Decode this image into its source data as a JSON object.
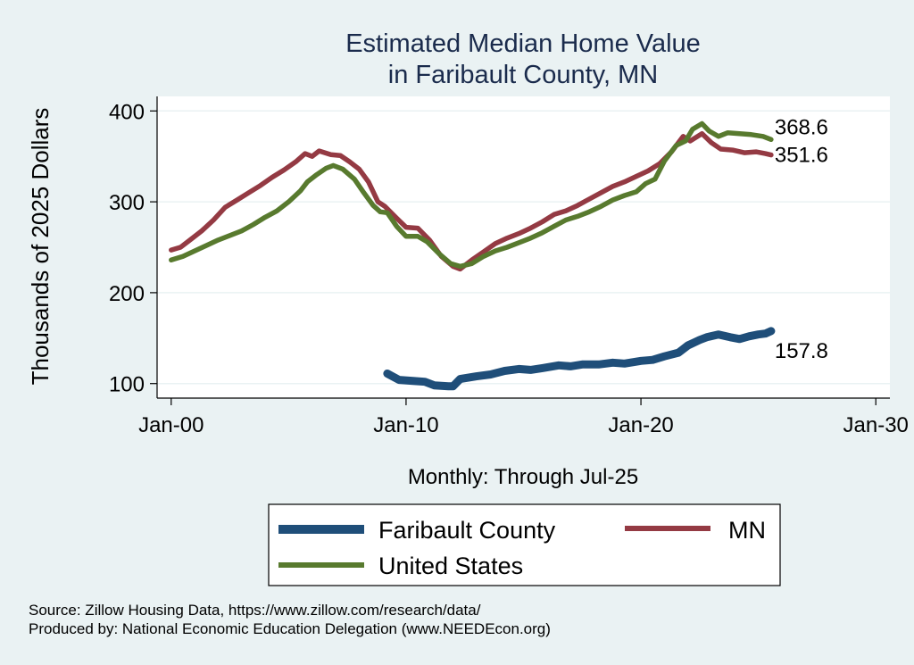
{
  "chart_data": {
    "type": "line",
    "title": [
      "Estimated Median Home Value",
      "in Faribault County, MN"
    ],
    "xlabel": "Monthly: Through Jul-25",
    "ylabel": "Thousands of 2025 Dollars",
    "xlim": [
      1999.4,
      2030.6
    ],
    "ylim": [
      84,
      416
    ],
    "x_ticks": [
      {
        "value": 2000,
        "label": "Jan-00"
      },
      {
        "value": 2010,
        "label": "Jan-10"
      },
      {
        "value": 2020,
        "label": "Jan-20"
      },
      {
        "value": 2030,
        "label": "Jan-30"
      }
    ],
    "y_ticks": [
      {
        "value": 100,
        "label": "100"
      },
      {
        "value": 200,
        "label": "200"
      },
      {
        "value": 300,
        "label": "300"
      },
      {
        "value": 400,
        "label": "400"
      }
    ],
    "grid": true,
    "legend_position": "bottom",
    "series": [
      {
        "name": "Faribault County",
        "color": "#1f4e79",
        "end_label": "157.8",
        "x": [
          2009.2,
          2009.7,
          2010.3,
          2010.8,
          2011.2,
          2011.8,
          2012.0,
          2012.3,
          2013.0,
          2013.6,
          2014.2,
          2014.8,
          2015.3,
          2015.8,
          2016.5,
          2017.0,
          2017.5,
          2018.2,
          2018.8,
          2019.3,
          2020.0,
          2020.5,
          2021.0,
          2021.6,
          2022.0,
          2022.5,
          2022.8,
          2023.3,
          2023.8,
          2024.2,
          2024.6,
          2025.0,
          2025.3,
          2025.54
        ],
        "y": [
          111,
          104,
          103,
          102,
          98,
          97,
          97,
          105,
          108,
          110,
          114,
          116,
          115,
          117,
          120,
          119,
          121,
          121,
          123,
          122,
          125,
          126,
          130,
          134,
          142,
          148,
          151,
          154,
          151,
          149,
          152,
          154,
          155,
          157.8
        ]
      },
      {
        "name": "MN",
        "color": "#943a43",
        "end_label": "351.6",
        "x": [
          2000.0,
          2000.4,
          2000.8,
          2001.3,
          2001.8,
          2002.3,
          2002.8,
          2003.3,
          2003.8,
          2004.3,
          2004.8,
          2005.3,
          2005.7,
          2006.0,
          2006.3,
          2006.8,
          2007.2,
          2007.6,
          2008.0,
          2008.4,
          2008.8,
          2009.1,
          2009.6,
          2010.0,
          2010.5,
          2011.0,
          2011.5,
          2012.0,
          2012.3,
          2012.8,
          2013.3,
          2013.8,
          2014.3,
          2014.8,
          2015.3,
          2015.8,
          2016.3,
          2016.8,
          2017.3,
          2017.8,
          2018.3,
          2018.8,
          2019.3,
          2019.8,
          2020.3,
          2020.8,
          2021.3,
          2021.8,
          2022.1,
          2022.6,
          2023.0,
          2023.4,
          2023.9,
          2024.4,
          2024.9,
          2025.3,
          2025.54
        ],
        "y": [
          247,
          250,
          258,
          268,
          280,
          294,
          302,
          310,
          318,
          327,
          335,
          344,
          353,
          350,
          356,
          352,
          351,
          344,
          336,
          322,
          300,
          295,
          282,
          272,
          271,
          258,
          240,
          229,
          226,
          236,
          245,
          254,
          260,
          265,
          271,
          278,
          286,
          290,
          296,
          303,
          310,
          317,
          322,
          328,
          334,
          342,
          355,
          372,
          367,
          375,
          365,
          358,
          357,
          354,
          355,
          353,
          351.6
        ]
      },
      {
        "name": "United States",
        "color": "#587a2e",
        "end_label": "368.6",
        "x": [
          2000.0,
          2000.5,
          2001.0,
          2001.5,
          2002.0,
          2002.5,
          2003.0,
          2003.5,
          2004.0,
          2004.5,
          2005.0,
          2005.5,
          2005.8,
          2006.2,
          2006.6,
          2006.9,
          2007.3,
          2007.8,
          2008.2,
          2008.6,
          2008.9,
          2009.2,
          2009.6,
          2010.0,
          2010.5,
          2010.9,
          2011.4,
          2011.9,
          2012.3,
          2012.8,
          2013.3,
          2013.8,
          2014.3,
          2014.8,
          2015.3,
          2015.8,
          2016.3,
          2016.8,
          2017.3,
          2017.8,
          2018.3,
          2018.8,
          2019.3,
          2019.8,
          2020.2,
          2020.6,
          2021.0,
          2021.5,
          2021.9,
          2022.2,
          2022.6,
          2022.9,
          2023.3,
          2023.7,
          2024.2,
          2024.7,
          2025.2,
          2025.54
        ],
        "y": [
          236,
          240,
          246,
          252,
          258,
          263,
          268,
          275,
          283,
          290,
          300,
          312,
          322,
          330,
          337,
          340,
          336,
          325,
          310,
          296,
          289,
          288,
          273,
          262,
          262,
          256,
          243,
          232,
          229,
          232,
          240,
          246,
          250,
          255,
          260,
          266,
          273,
          280,
          284,
          289,
          295,
          302,
          307,
          311,
          320,
          325,
          345,
          362,
          367,
          380,
          386,
          378,
          372,
          376,
          375,
          374,
          372,
          368.6
        ]
      }
    ],
    "legend": [
      {
        "name": "Faribault County",
        "color": "#1f4e79"
      },
      {
        "name": "MN",
        "color": "#943a43"
      },
      {
        "name": "United States",
        "color": "#587a2e"
      }
    ]
  },
  "source_lines": [
    "Source: Zillow Housing Data, https://www.zillow.com/research/data/",
    "Produced by: National Economic Education Delegation (www.NEEDEcon.org)"
  ]
}
